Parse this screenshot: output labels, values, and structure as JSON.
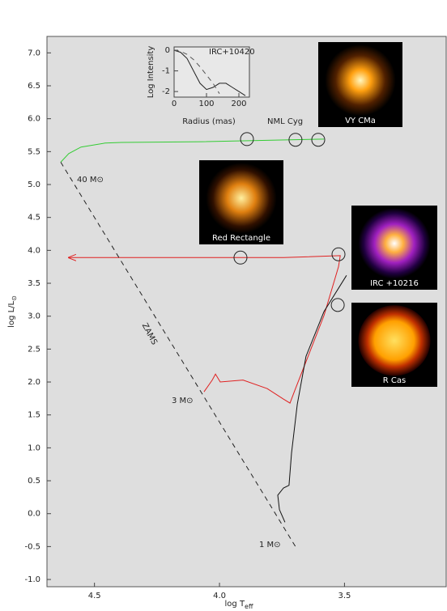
{
  "chart_data": [
    {
      "type": "line",
      "xlabel": "log T",
      "xlabel_sub": "eff",
      "ylabel": "log L/L",
      "ylabel_sub": "⊙",
      "xlim": [
        4.69,
        3.09
      ],
      "ylim": [
        -1.11,
        7.25
      ],
      "xticks": [
        4.5,
        {
          "value": 4.0,
          "label": "4.0"
        },
        3.5
      ],
      "yticks": [
        {
          "value": 7,
          "label": "7.0"
        },
        6.5,
        {
          "value": 6,
          "label": "6.0"
        },
        5.5,
        {
          "value": 5,
          "label": "5.0"
        },
        4.5,
        {
          "value": 4,
          "label": "4.0"
        },
        3.5,
        {
          "value": 3,
          "label": "3.0"
        },
        2.5,
        {
          "value": 2,
          "label": "2.0"
        },
        1.5,
        {
          "value": 1,
          "label": "1.0"
        },
        0.5,
        {
          "value": 0,
          "label": "0.0"
        },
        -0.5,
        {
          "value": -1,
          "label": "-1.0"
        }
      ],
      "series": [
        {
          "name": "40 M⊙",
          "color": "#33cc33",
          "x": [
            4.635,
            4.603,
            4.554,
            4.457,
            4.392,
            4.068,
            3.582
          ],
          "y": [
            5.34,
            5.47,
            5.57,
            5.63,
            5.64,
            5.65,
            5.69
          ]
        },
        {
          "name": "3 M⊙",
          "color": "#e02020",
          "x": [
            4.062,
            4.029,
            4.016,
            3.997,
            3.906,
            3.809,
            3.744,
            3.718,
            3.696,
            3.582,
            3.524,
            3.517,
            3.744,
            4.603
          ],
          "y": [
            1.85,
            2.03,
            2.12,
            2.0,
            2.03,
            1.9,
            1.74,
            1.68,
            1.9,
            3.01,
            3.75,
            3.92,
            3.89,
            3.89
          ]
        },
        {
          "name": "1 M⊙",
          "color": "#111111",
          "x": [
            3.738,
            3.76,
            3.767,
            3.744,
            3.722,
            3.712,
            3.689,
            3.654,
            3.582,
            3.492
          ],
          "y": [
            -0.13,
            0.06,
            0.28,
            0.39,
            0.43,
            0.92,
            1.66,
            2.39,
            3.07,
            3.62
          ]
        },
        {
          "name": "ZAMS",
          "color": "#222222",
          "dashed": true,
          "x": [
            4.635,
            3.696
          ],
          "y": [
            5.34,
            -0.5
          ]
        }
      ],
      "circles": {
        "x": [
          3.89,
          3.696,
          3.605,
          3.916,
          3.524,
          3.527
        ],
        "y": [
          5.69,
          5.68,
          5.68,
          3.89,
          3.94,
          3.17
        ]
      },
      "annotations": [
        "NML Cyg"
      ],
      "images": [
        "VY CMa",
        "Red Rectangle",
        "IRC +10216",
        "R Cas"
      ]
    },
    {
      "type": "line",
      "xlabel": "Radius (mas)",
      "ylabel": "Log Intensity",
      "annotation": "IRC+10420",
      "xlim": [
        0,
        230
      ],
      "ylim": [
        -2.27,
        0.16
      ],
      "xticks": [
        0,
        100,
        200
      ],
      "yticks": [
        0,
        -1,
        -2
      ],
      "series": [
        {
          "color": "#222222",
          "x": [
            0,
            20,
            40,
            60,
            80,
            100,
            120,
            140,
            160,
            180,
            200,
            220
          ],
          "y": [
            0,
            -0.1,
            -0.4,
            -1.0,
            -1.6,
            -1.9,
            -1.8,
            -1.6,
            -1.6,
            -1.8,
            -2.0,
            -2.2
          ]
        },
        {
          "color": "#555555",
          "dashed": true,
          "x": [
            0,
            20,
            40,
            60,
            80,
            100,
            120,
            140
          ],
          "y": [
            0,
            -0.05,
            -0.2,
            -0.45,
            -0.8,
            -1.2,
            -1.6,
            -2.1
          ]
        }
      ]
    }
  ]
}
